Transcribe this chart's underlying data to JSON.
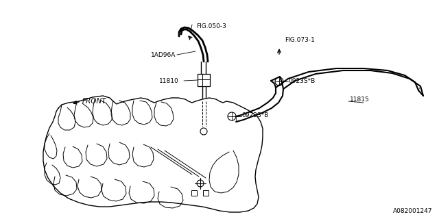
{
  "bg_color": "#ffffff",
  "line_color": "#000000",
  "text_color": "#000000",
  "diagram_id": "A082001247",
  "font_size": 6.5,
  "diagram_id_fontsize": 6.5,
  "labels": {
    "fig050_3": "FIG.050-3",
    "1AD96A": "1AD96A",
    "11810": "11810",
    "fig073_1": "FIG.073-1",
    "0923S_B_top": "0923S*B",
    "11815": "11815",
    "0923S_B_bot": "0923S*B",
    "front": "FRONT"
  }
}
